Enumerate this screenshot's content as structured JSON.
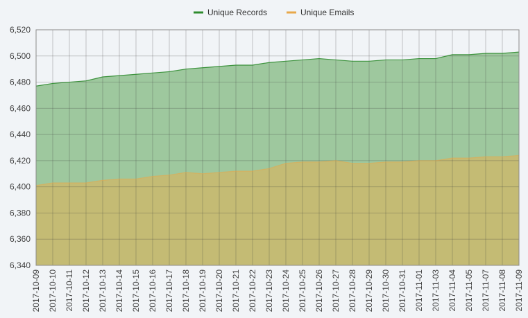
{
  "chart_data": {
    "type": "area",
    "title": "",
    "xlabel": "",
    "ylabel": "",
    "ylim": [
      6340,
      6520
    ],
    "y_ticks": [
      6340,
      6360,
      6380,
      6400,
      6420,
      6440,
      6460,
      6480,
      6500,
      6520
    ],
    "y_tick_labels": [
      "6,340",
      "6,360",
      "6,380",
      "6,400",
      "6,420",
      "6,440",
      "6,460",
      "6,480",
      "6,500",
      "6,520"
    ],
    "grid": true,
    "legend_position": "top-center",
    "x_tick_labels": [
      "2017-10-09",
      "2017-10-10",
      "2017-10-11",
      "2017-10-12",
      "2017-10-13",
      "2017-10-14",
      "2017-10-15",
      "2017-10-16",
      "2017-10-17",
      "2017-10-18",
      "2017-10-19",
      "2017-10-20",
      "2017-10-21",
      "2017-10-22",
      "2017-10-23",
      "2017-10-24",
      "2017-10-25",
      "2017-10-26",
      "2017-10-27",
      "2017-10-28",
      "2017-10-29",
      "2017-10-30",
      "2017-10-31",
      "2017-11-01",
      "2017-11-03",
      "2017-11-04",
      "2017-11-05",
      "2017-11-07",
      "2017-11-08",
      "2017-11-09"
    ],
    "series": [
      {
        "name": "Unique Records",
        "color": "#2e8b2e",
        "fill": "#9ec89e",
        "values": [
          6477,
          6479,
          6480,
          6481,
          6484,
          6485,
          6486,
          6487,
          6488,
          6490,
          6491,
          6492,
          6493,
          6493,
          6495,
          6496,
          6497,
          6498,
          6497,
          6496,
          6496,
          6497,
          6497,
          6498,
          6498,
          6501,
          6501,
          6502,
          6502,
          6503
        ]
      },
      {
        "name": "Unique Emails",
        "color": "#e8a84a",
        "fill": "#c4bb74",
        "values": [
          6401,
          6403,
          6403,
          6403,
          6405,
          6406,
          6406,
          6408,
          6409,
          6411,
          6410,
          6411,
          6412,
          6412,
          6414,
          6418,
          6419,
          6419,
          6420,
          6418,
          6418,
          6419,
          6419,
          6420,
          6420,
          6422,
          6422,
          6423,
          6423,
          6424
        ]
      }
    ]
  }
}
